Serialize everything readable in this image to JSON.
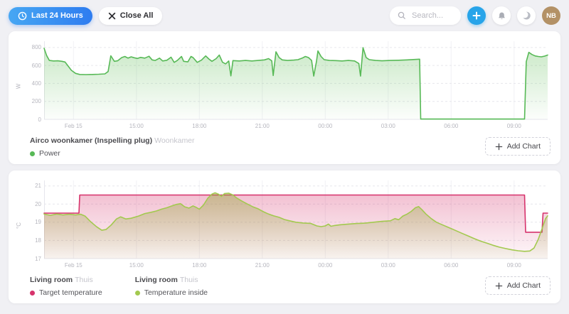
{
  "topbar": {
    "time_range_label": "Last 24 Hours",
    "close_all_label": "Close All",
    "search_placeholder": "Search...",
    "avatar_initials": "NB"
  },
  "cards": [
    {
      "add_chart_label": "Add Chart"
    },
    {
      "add_chart_label": "Add Chart"
    }
  ],
  "chart_data": [
    {
      "type": "area",
      "title": "Airco woonkamer (Inspelling plug)",
      "subtitle": "Woonkamer",
      "y_axis_label": "W",
      "x_range": [
        0,
        24
      ],
      "y_range": [
        0,
        870
      ],
      "y_ticks": [
        0,
        200,
        400,
        600,
        800
      ],
      "x_ticks": [
        {
          "t": 1.4,
          "label": "Feb 15"
        },
        {
          "t": 4.4,
          "label": "15:00"
        },
        {
          "t": 7.4,
          "label": "18:00"
        },
        {
          "t": 10.4,
          "label": "21:00"
        },
        {
          "t": 13.4,
          "label": "00:00"
        },
        {
          "t": 16.4,
          "label": "03:00"
        },
        {
          "t": 19.4,
          "label": "06:00"
        },
        {
          "t": 22.4,
          "label": "09:00"
        }
      ],
      "series": [
        {
          "name": "Power",
          "color": "#57b956",
          "fill_top": "rgba(104,192,96,0.35)",
          "fill_bottom": "rgba(104,192,96,0.02)",
          "points": [
            [
              0,
              792
            ],
            [
              0.12,
              712
            ],
            [
              0.25,
              656
            ],
            [
              0.45,
              650
            ],
            [
              0.65,
              652
            ],
            [
              0.85,
              646
            ],
            [
              1.0,
              638
            ],
            [
              1.15,
              592
            ],
            [
              1.3,
              546
            ],
            [
              1.5,
              512
            ],
            [
              1.7,
              500
            ],
            [
              2.0,
              498
            ],
            [
              2.3,
              500
            ],
            [
              2.6,
              502
            ],
            [
              2.9,
              506
            ],
            [
              3.05,
              532
            ],
            [
              3.18,
              708
            ],
            [
              3.35,
              646
            ],
            [
              3.5,
              652
            ],
            [
              3.7,
              688
            ],
            [
              3.85,
              700
            ],
            [
              4.0,
              682
            ],
            [
              4.15,
              696
            ],
            [
              4.3,
              686
            ],
            [
              4.45,
              678
            ],
            [
              4.6,
              690
            ],
            [
              4.8,
              682
            ],
            [
              5.0,
              702
            ],
            [
              5.15,
              662
            ],
            [
              5.3,
              656
            ],
            [
              5.5,
              682
            ],
            [
              5.65,
              650
            ],
            [
              5.85,
              658
            ],
            [
              6.05,
              692
            ],
            [
              6.2,
              634
            ],
            [
              6.35,
              656
            ],
            [
              6.55,
              700
            ],
            [
              6.65,
              646
            ],
            [
              6.85,
              640
            ],
            [
              7.0,
              700
            ],
            [
              7.1,
              688
            ],
            [
              7.3,
              634
            ],
            [
              7.5,
              660
            ],
            [
              7.7,
              706
            ],
            [
              7.85,
              672
            ],
            [
              8.0,
              646
            ],
            [
              8.2,
              676
            ],
            [
              8.35,
              716
            ],
            [
              8.5,
              636
            ],
            [
              8.65,
              618
            ],
            [
              8.8,
              650
            ],
            [
              8.9,
              484
            ],
            [
              9.0,
              654
            ],
            [
              9.3,
              650
            ],
            [
              9.6,
              656
            ],
            [
              9.9,
              650
            ],
            [
              10.2,
              656
            ],
            [
              10.5,
              662
            ],
            [
              10.7,
              676
            ],
            [
              10.85,
              652
            ],
            [
              10.92,
              488
            ],
            [
              11.05,
              752
            ],
            [
              11.2,
              688
            ],
            [
              11.35,
              662
            ],
            [
              11.6,
              656
            ],
            [
              11.9,
              660
            ],
            [
              12.1,
              664
            ],
            [
              12.3,
              682
            ],
            [
              12.45,
              700
            ],
            [
              12.6,
              688
            ],
            [
              12.75,
              656
            ],
            [
              12.85,
              482
            ],
            [
              12.98,
              642
            ],
            [
              13.05,
              762
            ],
            [
              13.2,
              700
            ],
            [
              13.35,
              664
            ],
            [
              13.6,
              656
            ],
            [
              13.9,
              654
            ],
            [
              14.2,
              650
            ],
            [
              14.5,
              656
            ],
            [
              14.8,
              650
            ],
            [
              15.0,
              622
            ],
            [
              15.08,
              482
            ],
            [
              15.2,
              798
            ],
            [
              15.35,
              688
            ],
            [
              15.5,
              664
            ],
            [
              15.8,
              656
            ],
            [
              16.1,
              652
            ],
            [
              16.5,
              656
            ],
            [
              16.9,
              658
            ],
            [
              17.3,
              662
            ],
            [
              17.6,
              666
            ],
            [
              17.9,
              670
            ],
            [
              17.95,
              3
            ],
            [
              19.0,
              3
            ],
            [
              20.5,
              3
            ],
            [
              22.0,
              3
            ],
            [
              22.9,
              3
            ],
            [
              22.98,
              642
            ],
            [
              23.1,
              746
            ],
            [
              23.25,
              722
            ],
            [
              23.4,
              706
            ],
            [
              23.55,
              700
            ],
            [
              23.7,
              696
            ],
            [
              23.85,
              704
            ],
            [
              24,
              716
            ]
          ]
        }
      ]
    },
    {
      "type": "area",
      "entities": [
        {
          "title": "Living room",
          "subtitle": "Thuis"
        },
        {
          "title": "Living room",
          "subtitle": "Thuis"
        }
      ],
      "y_axis_label": "°C",
      "x_range": [
        0,
        24
      ],
      "y_range": [
        17,
        21.3
      ],
      "y_ticks": [
        17,
        18,
        19,
        20,
        21
      ],
      "x_ticks": [
        {
          "t": 1.4,
          "label": "Feb 15"
        },
        {
          "t": 4.4,
          "label": "15:00"
        },
        {
          "t": 7.4,
          "label": "18:00"
        },
        {
          "t": 10.4,
          "label": "21:00"
        },
        {
          "t": 13.4,
          "label": "00:00"
        },
        {
          "t": 16.4,
          "label": "03:00"
        },
        {
          "t": 19.4,
          "label": "06:00"
        },
        {
          "t": 22.4,
          "label": "09:00"
        }
      ],
      "series": [
        {
          "name": "Target temperature",
          "color": "#d6336c",
          "fill_top": "rgba(214,51,108,0.30)",
          "fill_bottom": "rgba(214,51,108,0.04)",
          "points": [
            [
              0,
              19.5
            ],
            [
              1.66,
              19.5
            ],
            [
              1.7,
              20.5
            ],
            [
              22.9,
              20.5
            ],
            [
              22.95,
              18.45
            ],
            [
              23.73,
              18.45
            ],
            [
              23.78,
              19.5
            ],
            [
              24,
              19.5
            ]
          ]
        },
        {
          "name": "Temperature inside",
          "color": "#a3c94f",
          "fill_top": "rgba(150,168,60,0.45)",
          "fill_bottom": "rgba(150,168,60,0.05)",
          "points": [
            [
              0,
              19.45
            ],
            [
              0.3,
              19.38
            ],
            [
              0.6,
              19.45
            ],
            [
              0.9,
              19.4
            ],
            [
              1.2,
              19.44
            ],
            [
              1.5,
              19.4
            ],
            [
              1.75,
              19.44
            ],
            [
              1.95,
              19.34
            ],
            [
              2.2,
              19.05
            ],
            [
              2.5,
              18.75
            ],
            [
              2.75,
              18.56
            ],
            [
              2.95,
              18.6
            ],
            [
              3.2,
              18.85
            ],
            [
              3.45,
              19.18
            ],
            [
              3.65,
              19.3
            ],
            [
              3.9,
              19.18
            ],
            [
              4.15,
              19.22
            ],
            [
              4.5,
              19.34
            ],
            [
              4.8,
              19.48
            ],
            [
              5.1,
              19.55
            ],
            [
              5.35,
              19.62
            ],
            [
              5.6,
              19.72
            ],
            [
              5.85,
              19.8
            ],
            [
              6.1,
              19.9
            ],
            [
              6.3,
              19.98
            ],
            [
              6.5,
              20.02
            ],
            [
              6.7,
              19.85
            ],
            [
              6.9,
              19.78
            ],
            [
              7.1,
              19.9
            ],
            [
              7.25,
              19.82
            ],
            [
              7.4,
              19.72
            ],
            [
              7.6,
              19.95
            ],
            [
              7.8,
              20.32
            ],
            [
              8.0,
              20.55
            ],
            [
              8.15,
              20.62
            ],
            [
              8.3,
              20.55
            ],
            [
              8.45,
              20.42
            ],
            [
              8.6,
              20.58
            ],
            [
              8.8,
              20.6
            ],
            [
              9.0,
              20.5
            ],
            [
              9.2,
              20.32
            ],
            [
              9.45,
              20.15
            ],
            [
              9.7,
              20.0
            ],
            [
              9.95,
              19.85
            ],
            [
              10.2,
              19.74
            ],
            [
              10.45,
              19.58
            ],
            [
              10.7,
              19.45
            ],
            [
              10.95,
              19.35
            ],
            [
              11.2,
              19.27
            ],
            [
              11.45,
              19.15
            ],
            [
              11.7,
              19.08
            ],
            [
              12.0,
              19.0
            ],
            [
              12.35,
              18.96
            ],
            [
              12.7,
              18.94
            ],
            [
              13.0,
              18.8
            ],
            [
              13.2,
              18.76
            ],
            [
              13.4,
              18.8
            ],
            [
              13.55,
              18.9
            ],
            [
              13.67,
              18.78
            ],
            [
              13.85,
              18.82
            ],
            [
              14.1,
              18.86
            ],
            [
              14.5,
              18.9
            ],
            [
              14.9,
              18.93
            ],
            [
              15.3,
              18.95
            ],
            [
              15.7,
              19.0
            ],
            [
              16.1,
              19.05
            ],
            [
              16.5,
              19.08
            ],
            [
              16.72,
              19.2
            ],
            [
              16.9,
              19.14
            ],
            [
              17.1,
              19.34
            ],
            [
              17.3,
              19.45
            ],
            [
              17.5,
              19.6
            ],
            [
              17.7,
              19.8
            ],
            [
              17.85,
              19.86
            ],
            [
              18.0,
              19.7
            ],
            [
              18.2,
              19.45
            ],
            [
              18.45,
              19.2
            ],
            [
              18.7,
              19.0
            ],
            [
              19.0,
              18.85
            ],
            [
              19.3,
              18.7
            ],
            [
              19.6,
              18.55
            ],
            [
              19.9,
              18.4
            ],
            [
              20.2,
              18.25
            ],
            [
              20.5,
              18.1
            ],
            [
              20.8,
              17.96
            ],
            [
              21.1,
              17.85
            ],
            [
              21.4,
              17.73
            ],
            [
              21.7,
              17.63
            ],
            [
              22.0,
              17.55
            ],
            [
              22.3,
              17.48
            ],
            [
              22.6,
              17.43
            ],
            [
              22.9,
              17.4
            ],
            [
              23.15,
              17.42
            ],
            [
              23.35,
              17.58
            ],
            [
              23.55,
              18.05
            ],
            [
              23.75,
              18.7
            ],
            [
              23.9,
              19.2
            ],
            [
              24,
              19.35
            ]
          ]
        }
      ]
    }
  ]
}
